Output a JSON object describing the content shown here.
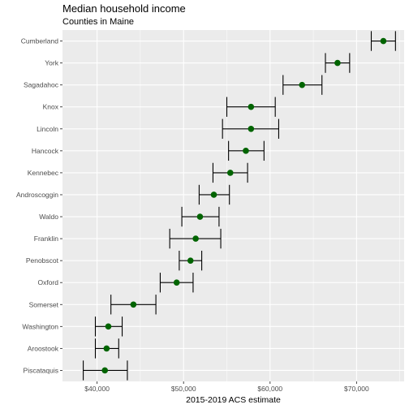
{
  "chart_data": {
    "type": "dot-errorbar",
    "title": "Median household income",
    "subtitle": "Counties in Maine",
    "xlabel": "2015-2019 ACS estimate",
    "ylabel": "",
    "xlim": [
      36000,
      75500
    ],
    "x_ticks": [
      40000,
      50000,
      60000,
      70000
    ],
    "x_tick_labels": [
      "$40,000",
      "$50,000",
      "$60,000",
      "$70,000"
    ],
    "grid": true,
    "legend": "none",
    "colors": {
      "point": "#006400",
      "panel": "#ebebeb",
      "grid": "#ffffff",
      "errorbar": "#000000"
    },
    "points": [
      {
        "name": "Cumberland",
        "estimate": 73100,
        "low": 71700,
        "high": 74500
      },
      {
        "name": "York",
        "estimate": 67800,
        "low": 66400,
        "high": 69200
      },
      {
        "name": "Sagadahoc",
        "estimate": 63700,
        "low": 61500,
        "high": 66000
      },
      {
        "name": "Knox",
        "estimate": 57800,
        "low": 55000,
        "high": 60600
      },
      {
        "name": "Lincoln",
        "estimate": 57800,
        "low": 54500,
        "high": 61000
      },
      {
        "name": "Hancock",
        "estimate": 57200,
        "low": 55200,
        "high": 59300
      },
      {
        "name": "Kennebec",
        "estimate": 55400,
        "low": 53400,
        "high": 57400
      },
      {
        "name": "Androscoggin",
        "estimate": 53500,
        "low": 51800,
        "high": 55300
      },
      {
        "name": "Waldo",
        "estimate": 51900,
        "low": 49800,
        "high": 54100
      },
      {
        "name": "Franklin",
        "estimate": 51400,
        "low": 48400,
        "high": 54300
      },
      {
        "name": "Penobscot",
        "estimate": 50800,
        "low": 49500,
        "high": 52100
      },
      {
        "name": "Oxford",
        "estimate": 49200,
        "low": 47300,
        "high": 51100
      },
      {
        "name": "Somerset",
        "estimate": 44200,
        "low": 41600,
        "high": 46800
      },
      {
        "name": "Washington",
        "estimate": 41300,
        "low": 39800,
        "high": 42900
      },
      {
        "name": "Aroostook",
        "estimate": 41100,
        "low": 39800,
        "high": 42500
      },
      {
        "name": "Piscataquis",
        "estimate": 40900,
        "low": 38400,
        "high": 43500
      }
    ]
  }
}
